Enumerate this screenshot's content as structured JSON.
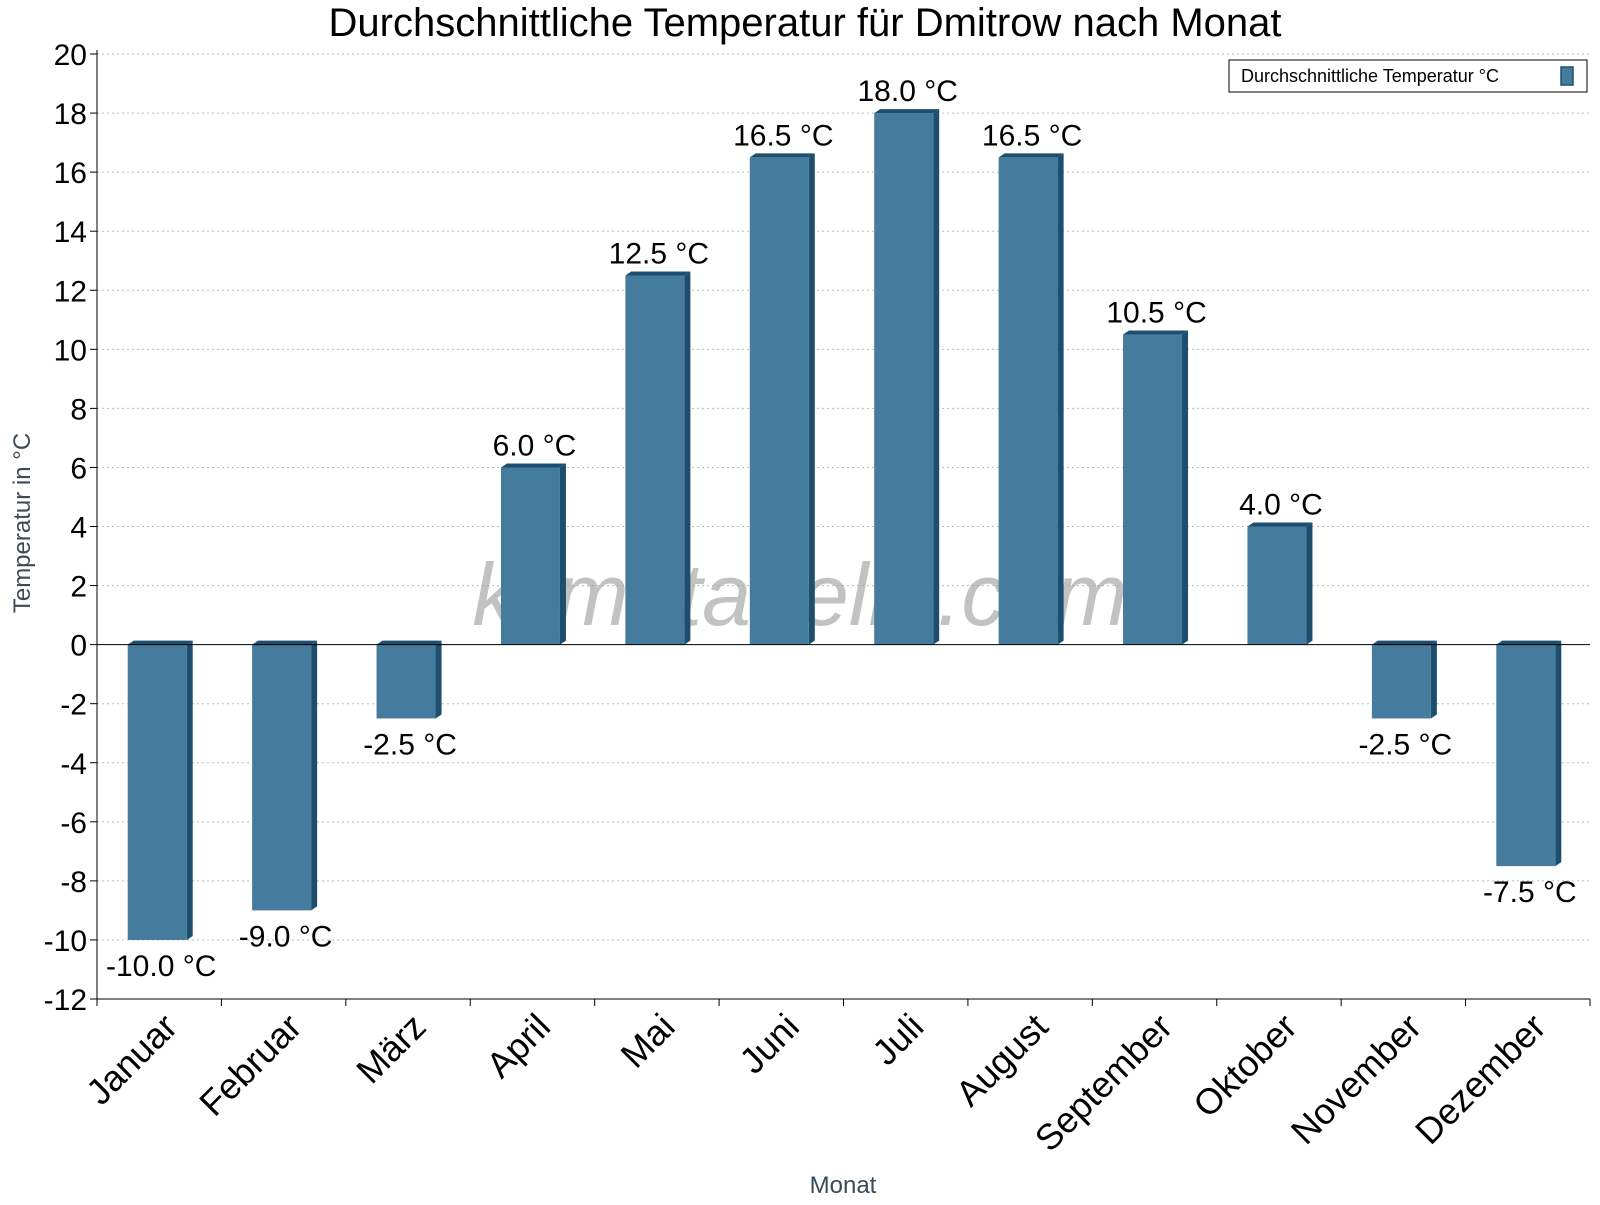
{
  "chart_data": {
    "type": "bar",
    "title": "Durchschnittliche Temperatur für Dmitrow nach Monat",
    "xlabel": "Monat",
    "ylabel": "Temperatur in °C",
    "categories": [
      "Januar",
      "Februar",
      "März",
      "April",
      "Mai",
      "Juni",
      "Juli",
      "August",
      "September",
      "Oktober",
      "November",
      "Dezember"
    ],
    "series": [
      {
        "name": "Durchschnittliche Temperatur °C",
        "values": [
          -10.0,
          -9.0,
          -2.5,
          6.0,
          12.5,
          16.5,
          18.0,
          16.5,
          10.5,
          4.0,
          -2.5,
          -7.5
        ],
        "labels": [
          "-10.0 °C",
          "-9.0 °C",
          "-2.5 °C",
          "6.0 °C",
          "12.5 °C",
          "16.5 °C",
          "18.0 °C",
          "16.5 °C",
          "10.5 °C",
          "4.0 °C",
          "-2.5 °C",
          "-7.5 °C"
        ]
      }
    ],
    "ylim": [
      -12,
      20
    ],
    "yticks": [
      "-12",
      "-10",
      "-8",
      "-6",
      "-4",
      "-2",
      "0",
      "2",
      "4",
      "6",
      "8",
      "10",
      "12",
      "14",
      "16",
      "18",
      "20"
    ],
    "grid": true,
    "legend_position": "top-right",
    "colors": {
      "bar": "#457b9d",
      "bar_side": "#1d4e6e",
      "grid": "#bbbbbb",
      "axis": "#000000",
      "zero_line": "#000000"
    }
  },
  "watermark": "klimatabelle.com"
}
